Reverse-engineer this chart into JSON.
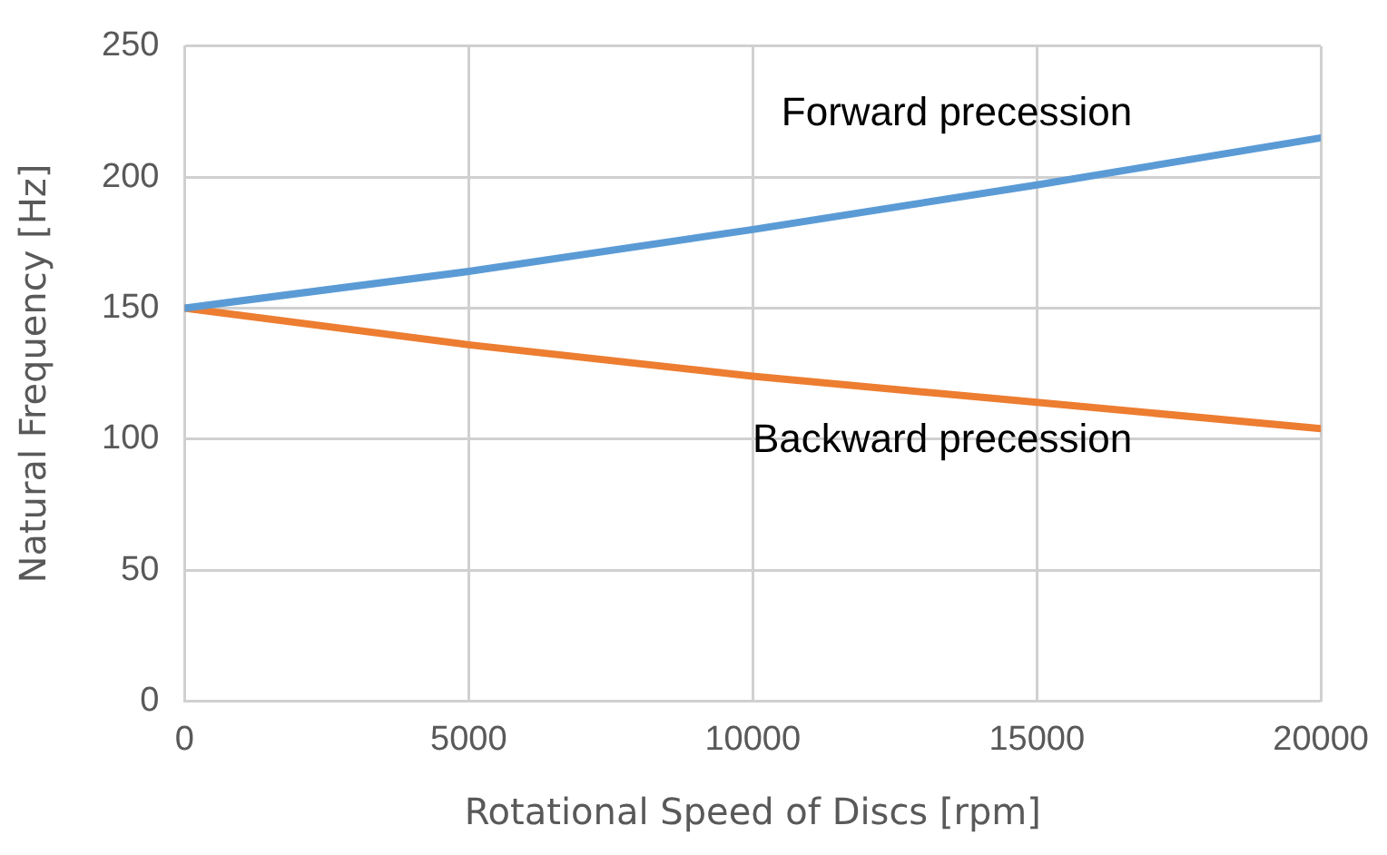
{
  "chart_data": {
    "type": "line",
    "xlabel": "Rotational Speed of Discs [rpm]",
    "ylabel": "Natural Frequency [Hz]",
    "x": [
      0,
      5000,
      10000,
      15000,
      20000
    ],
    "series": [
      {
        "name": "Forward precession",
        "color": "#5b9bd5",
        "values": [
          150,
          164,
          180,
          197,
          215
        ]
      },
      {
        "name": "Backward precession",
        "color": "#ed7d31",
        "values": [
          150,
          136,
          124,
          114,
          104
        ]
      }
    ],
    "xlim": [
      0,
      20000
    ],
    "xticks": [
      0,
      5000,
      10000,
      15000,
      20000
    ],
    "ylim": [
      0,
      250
    ],
    "yticks": [
      0,
      50,
      100,
      150,
      200,
      250
    ],
    "grid": true,
    "legend": false,
    "marker": "none",
    "line_style": "solid"
  }
}
